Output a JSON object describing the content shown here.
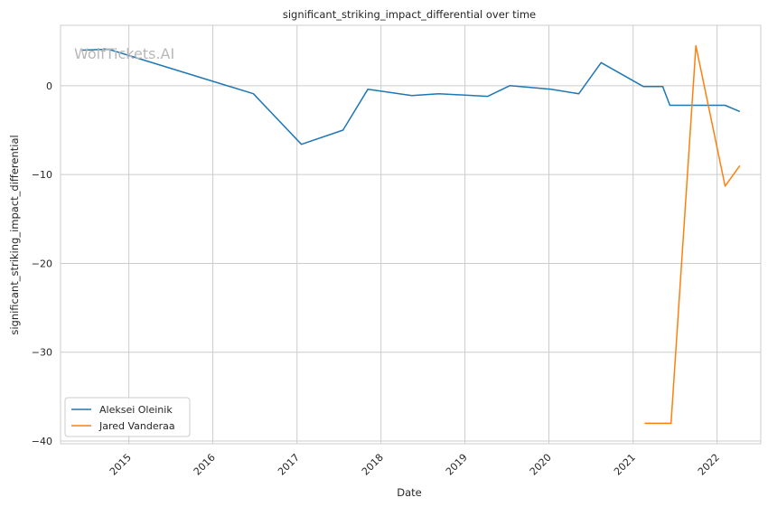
{
  "chart_data": {
    "type": "line",
    "title": "significant_striking_impact_differential over time",
    "xlabel": "Date",
    "ylabel": "significant_striking_impact_differential",
    "watermark": "WolfTickets.AI",
    "x_ticks": [
      "2015",
      "2016",
      "2017",
      "2018",
      "2019",
      "2020",
      "2021",
      "2022"
    ],
    "x_range": [
      "2014-03-10",
      "2022-07-10"
    ],
    "y_ticks": [
      0,
      -10,
      -20,
      -30,
      -40
    ],
    "ylim": [
      -40.3,
      6.8
    ],
    "grid": true,
    "legend_position": "lower-left",
    "series": [
      {
        "name": "Aleksei Oleinik",
        "color": "#1f77b4",
        "points": [
          [
            "2014-06-10",
            4.0
          ],
          [
            "2014-10-05",
            4.1
          ],
          [
            "2015-01-01",
            3.4
          ],
          [
            "2016-06-25",
            -0.9
          ],
          [
            "2017-01-20",
            -6.6
          ],
          [
            "2017-07-20",
            -5.0
          ],
          [
            "2017-11-05",
            -0.4
          ],
          [
            "2018-05-15",
            -1.1
          ],
          [
            "2018-09-10",
            -0.9
          ],
          [
            "2019-04-10",
            -1.2
          ],
          [
            "2019-07-15",
            0.0
          ],
          [
            "2020-01-10",
            -0.4
          ],
          [
            "2020-05-10",
            -0.9
          ],
          [
            "2020-08-15",
            2.6
          ],
          [
            "2021-02-15",
            -0.1
          ],
          [
            "2021-05-10",
            -0.1
          ],
          [
            "2021-06-10",
            -2.2
          ],
          [
            "2022-02-05",
            -2.2
          ],
          [
            "2022-04-10",
            -2.9
          ]
        ]
      },
      {
        "name": "Jared Vanderaa",
        "color": "#ff7f0e",
        "points": [
          [
            "2021-02-20",
            -38.0
          ],
          [
            "2021-06-15",
            -38.0
          ],
          [
            "2021-10-01",
            4.5
          ],
          [
            "2022-02-05",
            -11.3
          ],
          [
            "2022-04-10",
            -9.0
          ]
        ]
      }
    ]
  }
}
